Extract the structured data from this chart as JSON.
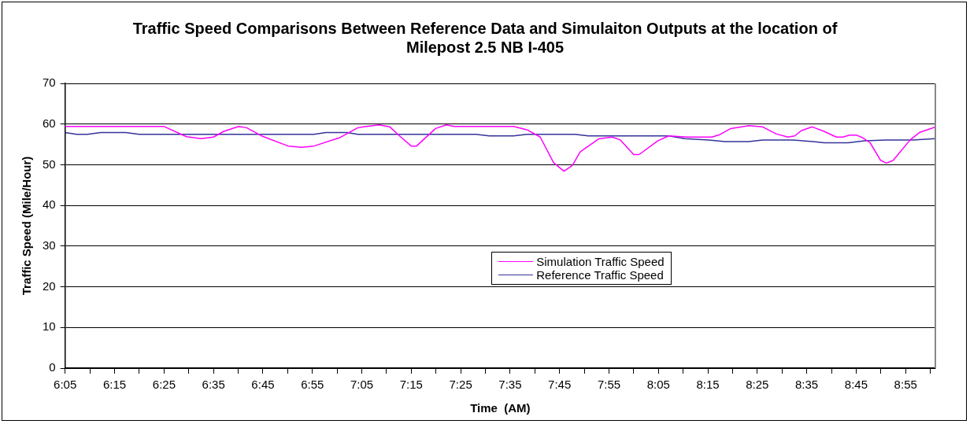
{
  "chart_data": {
    "type": "line",
    "title": "Traffic Speed Comparisons Between Reference Data and Simulaiton Outputs at the location of Milepost 2.5 NB I-405",
    "xlabel": "Time  (AM)",
    "ylabel": "Traffic Speed (Mile/Hour)",
    "series": [
      {
        "name": "Simulation Traffic Speed",
        "color": "#ff00ff",
        "x": [
          6.083,
          6.417,
          6.492,
          6.542,
          6.583,
          6.618,
          6.668,
          6.695,
          6.745,
          6.835,
          6.88,
          6.922,
          7.007,
          7.07,
          7.088,
          7.142,
          7.178,
          7.215,
          7.25,
          7.268,
          7.332,
          7.368,
          7.395,
          7.595,
          7.64,
          7.685,
          7.73,
          7.765,
          7.793,
          7.82,
          7.883,
          7.928,
          7.955,
          8.0,
          8.018,
          8.082,
          8.118,
          8.182,
          8.263,
          8.29,
          8.327,
          8.388,
          8.435,
          8.48,
          8.52,
          8.543,
          8.565,
          8.602,
          8.642,
          8.683,
          8.705,
          8.728,
          8.75,
          8.773,
          8.797,
          8.832,
          8.852,
          8.875,
          8.932,
          8.963,
          9.017
        ],
        "values": [
          59.4,
          59.4,
          56.9,
          56.4,
          56.8,
          58.2,
          59.4,
          59.1,
          57.1,
          54.6,
          54.3,
          54.6,
          56.6,
          59.1,
          59.3,
          59.8,
          59.3,
          56.8,
          54.6,
          54.6,
          58.9,
          59.8,
          59.4,
          59.4,
          58.6,
          56.8,
          50.5,
          48.4,
          49.8,
          53.2,
          56.4,
          56.8,
          56.1,
          52.5,
          52.5,
          55.9,
          57.1,
          56.8,
          56.8,
          57.4,
          58.9,
          59.6,
          59.3,
          57.6,
          56.8,
          57.1,
          58.4,
          59.3,
          58.2,
          56.8,
          56.8,
          57.3,
          57.3,
          56.6,
          55.4,
          51.1,
          50.4,
          51.1,
          56.1,
          57.9,
          59.3
        ]
      },
      {
        "name": "Reference Traffic Speed",
        "color": "#333399",
        "x": [
          6.083,
          6.122,
          6.158,
          6.203,
          6.288,
          6.333,
          6.922,
          6.962,
          7.033,
          7.07,
          7.468,
          7.513,
          7.595,
          7.64,
          7.802,
          7.847,
          8.118,
          8.172,
          8.253,
          8.308,
          8.388,
          8.435,
          8.533,
          8.605,
          8.642,
          8.723,
          8.778,
          8.85,
          8.94,
          9.017
        ],
        "values": [
          57.9,
          57.5,
          57.5,
          57.9,
          57.9,
          57.5,
          57.5,
          57.9,
          57.9,
          57.5,
          57.5,
          57.1,
          57.1,
          57.5,
          57.5,
          57.1,
          57.1,
          56.4,
          56.1,
          55.7,
          55.7,
          56.1,
          56.1,
          55.7,
          55.4,
          55.4,
          55.9,
          56.1,
          56.1,
          56.4
        ]
      }
    ],
    "xlim": [
      6.083,
      9.017
    ],
    "xticks": [
      {
        "value": 6.083,
        "label": "6:05"
      },
      {
        "value": 6.1667,
        "label": null
      },
      {
        "value": 6.25,
        "label": "6:15"
      },
      {
        "value": 6.3333,
        "label": null
      },
      {
        "value": 6.4167,
        "label": "6:25"
      },
      {
        "value": 6.5,
        "label": null
      },
      {
        "value": 6.5833,
        "label": "6:35"
      },
      {
        "value": 6.6667,
        "label": null
      },
      {
        "value": 6.75,
        "label": "6:45"
      },
      {
        "value": 6.8333,
        "label": null
      },
      {
        "value": 6.9167,
        "label": "6:55"
      },
      {
        "value": 7,
        "label": null
      },
      {
        "value": 7.0833,
        "label": "7:05"
      },
      {
        "value": 7.1667,
        "label": null
      },
      {
        "value": 7.25,
        "label": "7:15"
      },
      {
        "value": 7.3333,
        "label": null
      },
      {
        "value": 7.4167,
        "label": "7:25"
      },
      {
        "value": 7.5,
        "label": null
      },
      {
        "value": 7.5833,
        "label": "7:35"
      },
      {
        "value": 7.6667,
        "label": null
      },
      {
        "value": 7.75,
        "label": "7:45"
      },
      {
        "value": 7.8333,
        "label": null
      },
      {
        "value": 7.9167,
        "label": "7:55"
      },
      {
        "value": 8,
        "label": null
      },
      {
        "value": 8.0833,
        "label": "8:05"
      },
      {
        "value": 8.1667,
        "label": null
      },
      {
        "value": 8.25,
        "label": "8:15"
      },
      {
        "value": 8.3333,
        "label": null
      },
      {
        "value": 8.4167,
        "label": "8:25"
      },
      {
        "value": 8.5,
        "label": null
      },
      {
        "value": 8.5833,
        "label": "8:35"
      },
      {
        "value": 8.6667,
        "label": null
      },
      {
        "value": 8.75,
        "label": "8:45"
      },
      {
        "value": 8.8333,
        "label": null
      },
      {
        "value": 8.9167,
        "label": "8:55"
      },
      {
        "value": 9,
        "label": null
      }
    ],
    "ylim": [
      0,
      70
    ],
    "yticks": [
      0,
      10,
      20,
      30,
      40,
      50,
      60,
      70
    ],
    "grid": "y",
    "legend": "center right",
    "marker": "none",
    "line_style": "solid"
  }
}
